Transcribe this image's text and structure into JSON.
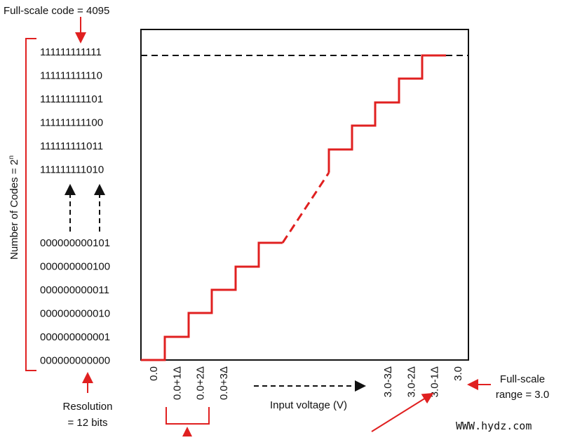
{
  "header": {
    "title": "Full-scale code = 4095"
  },
  "y_axis": {
    "label": "Number of Codes = 2",
    "superscript": "n",
    "upper_codes": [
      "111111111111",
      "111111111110",
      "111111111101",
      "111111111100",
      "111111111011",
      "111111111010"
    ],
    "lower_codes": [
      "000000000101",
      "000000000100",
      "000000000011",
      "000000000010",
      "000000000001",
      "000000000000"
    ]
  },
  "resolution": {
    "line1": "Resolution",
    "line2": "= 12 bits"
  },
  "x_axis": {
    "low_labels": [
      "0.0",
      "0.0+1Δ",
      "0.0+2Δ",
      "0.0+3Δ"
    ],
    "high_labels": [
      "3.0-3Δ",
      "3.0-2Δ",
      "3.0-1Δ",
      "3.0"
    ],
    "label": "Input voltage (V)"
  },
  "full_scale_range": {
    "line1": "Full-scale",
    "line2": "range = 3.0"
  },
  "watermark": "WWW.hydz.com"
}
